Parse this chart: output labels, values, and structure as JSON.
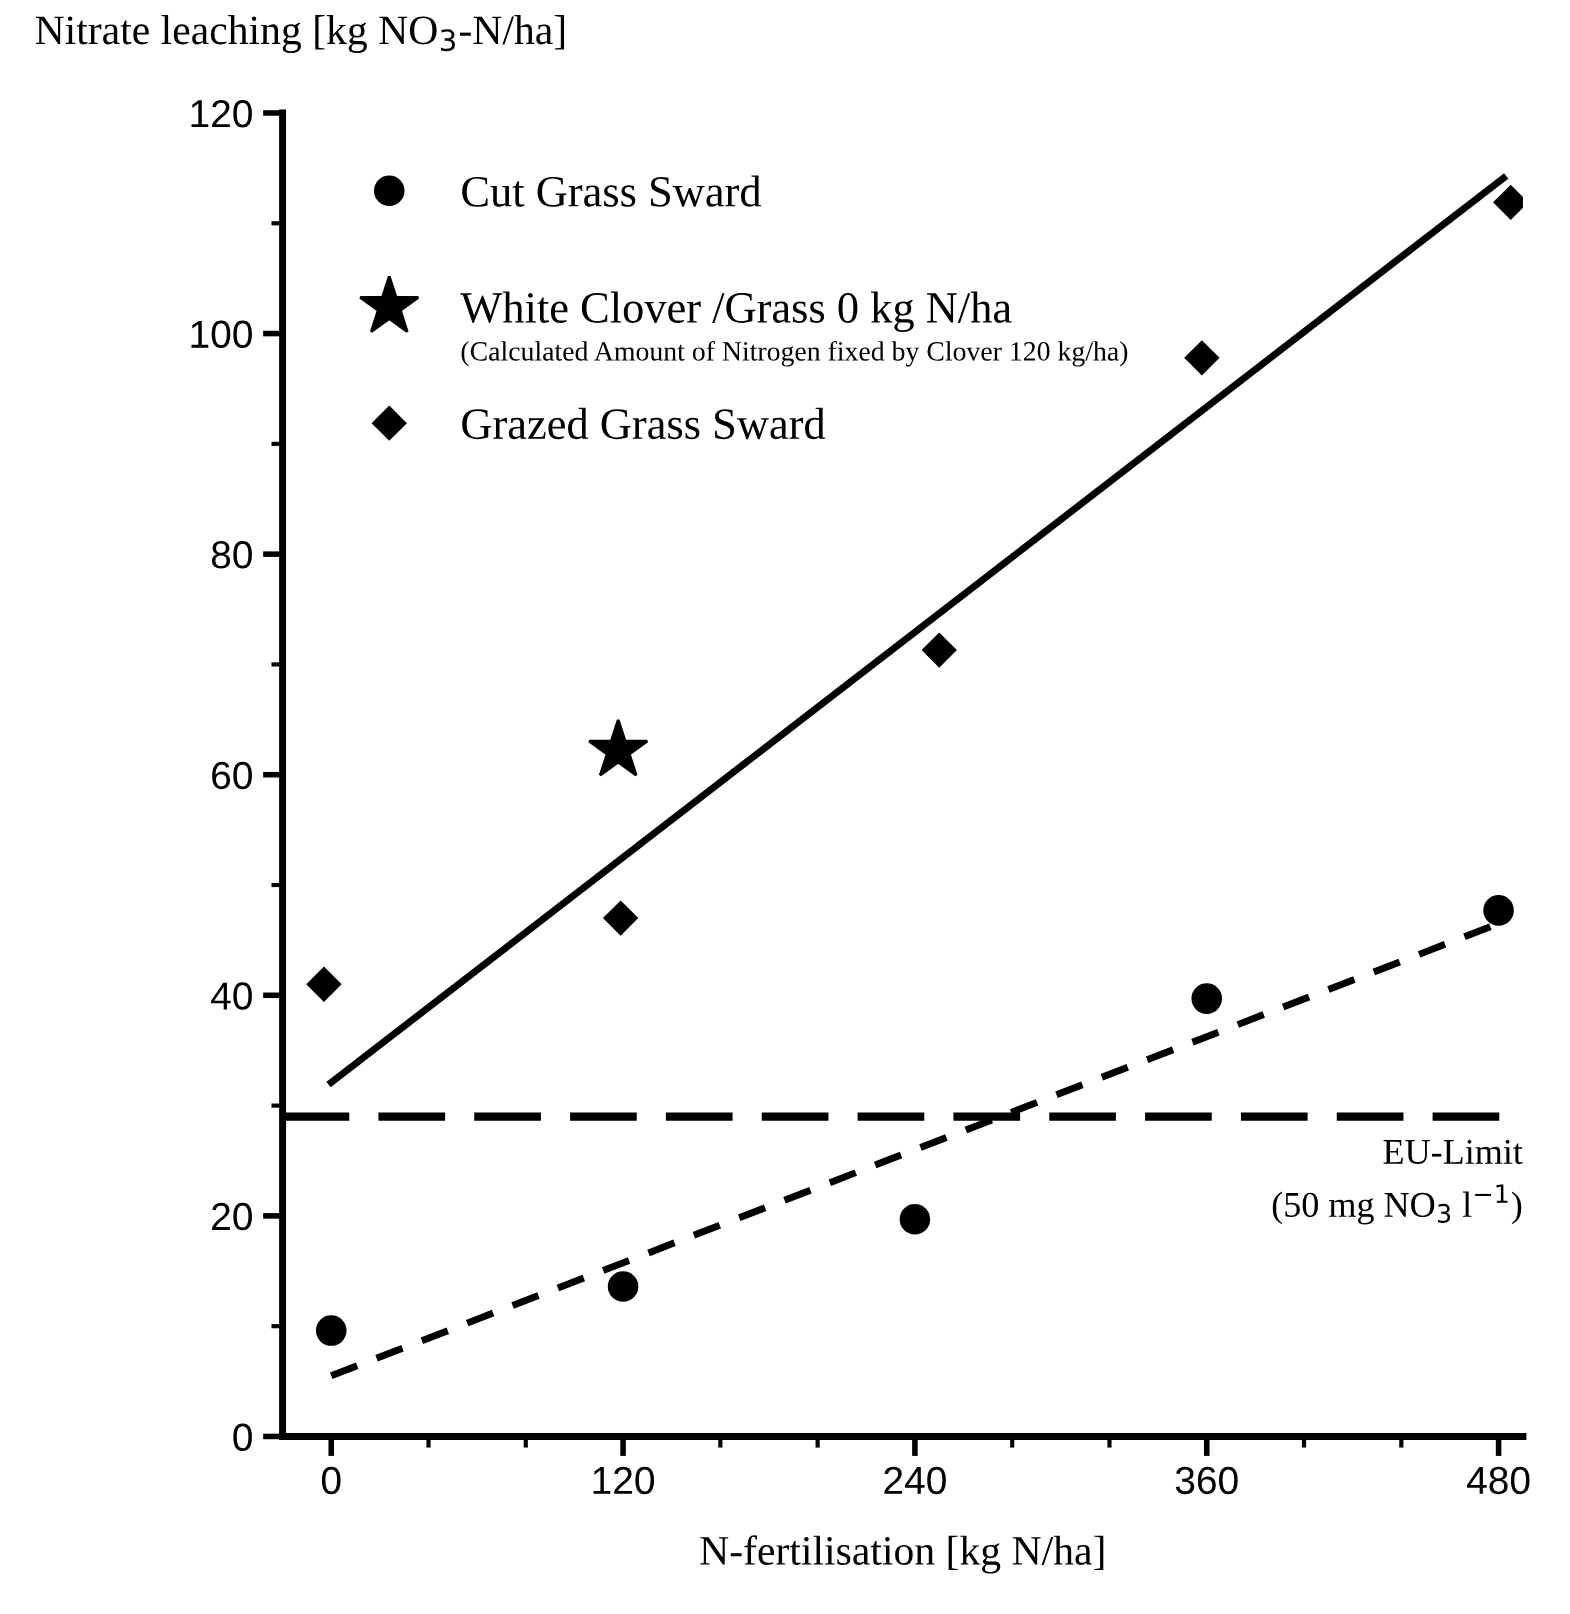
{
  "chart_data": {
    "type": "scatter",
    "xlabel": "N-fertilisation [kg N/ha]",
    "ylabel": "Nitrate leaching [kg NO$_{3}$-N/ha]",
    "xlim": [
      -20,
      490
    ],
    "ylim": [
      0,
      120
    ],
    "xticks": [
      0,
      120,
      240,
      360,
      480
    ],
    "yticks": [
      0,
      20,
      40,
      60,
      80,
      100,
      120
    ],
    "grid": false,
    "legend": "top left",
    "series": [
      {
        "name": "Cut Grass Sward",
        "marker": "circle",
        "color": "#000000",
        "x": [
          0,
          120,
          240,
          360,
          480
        ],
        "values": [
          9.6,
          13.6,
          19.7,
          39.7,
          47.7
        ]
      },
      {
        "name": "White Clover /Grass 0 kg N/ha",
        "marker": "star",
        "color": "#000000",
        "x": [
          118
        ],
        "values": [
          62.2
        ]
      },
      {
        "name": "Grazed Grass Sward",
        "marker": "diamond",
        "color": "#000000",
        "x": [
          -3,
          119,
          250,
          358,
          485
        ],
        "values": [
          41,
          47,
          71.3,
          97.8,
          111.9
        ]
      },
      {
        "type": "line",
        "line_style": "solid",
        "color": "#000000",
        "x": [
          0,
          482
        ],
        "values": [
          32.1,
          114.1
        ]
      },
      {
        "type": "line",
        "line_style": "dashed",
        "color": "#000000",
        "x": [
          0,
          480
        ],
        "values": [
          5.5,
          46.5
        ]
      }
    ],
    "ref_lines": [
      {
        "axis": "y",
        "value": 29,
        "label": "EU-Limit\n(50 mg NO$_{3}$ l$^{−1}$)",
        "color": "#000000",
        "line_style": "dashed"
      }
    ],
    "annotations": [
      "(Calculated Amount of Nitrogen fixed by Clover 120 kg/ha)"
    ]
  }
}
